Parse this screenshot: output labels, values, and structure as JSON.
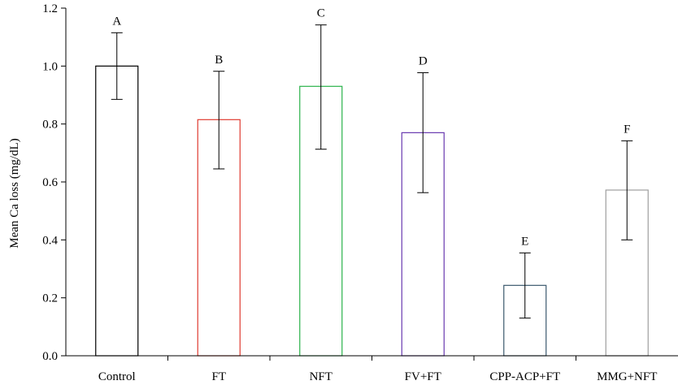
{
  "chart_data": {
    "type": "bar",
    "title": "",
    "xlabel": "",
    "ylabel": "Mean Ca loss (mg/dL)",
    "ylim": [
      0,
      1.2
    ],
    "yticks": [
      "0.0",
      "0.2",
      "0.4",
      "0.6",
      "0.8",
      "1.0",
      "1.2"
    ],
    "categories": [
      "Control",
      "FT",
      "NFT",
      "FV+FT",
      "CPP-ACP+FT",
      "MMG+NFT"
    ],
    "values": [
      1.0,
      0.815,
      0.93,
      0.77,
      0.243,
      0.572
    ],
    "error_upper": [
      1.115,
      0.982,
      1.142,
      0.977,
      0.355,
      0.742
    ],
    "error_lower": [
      0.885,
      0.645,
      0.713,
      0.563,
      0.13,
      0.4
    ],
    "letters": [
      "A",
      "B",
      "C",
      "D",
      "E",
      "F"
    ],
    "bar_colors": [
      "#000000",
      "#e03c31",
      "#2ab24a",
      "#6a3ab0",
      "#3d5a6e",
      "#9e9e9e"
    ],
    "bar_fill": "none",
    "grid": false,
    "legend": "none"
  }
}
